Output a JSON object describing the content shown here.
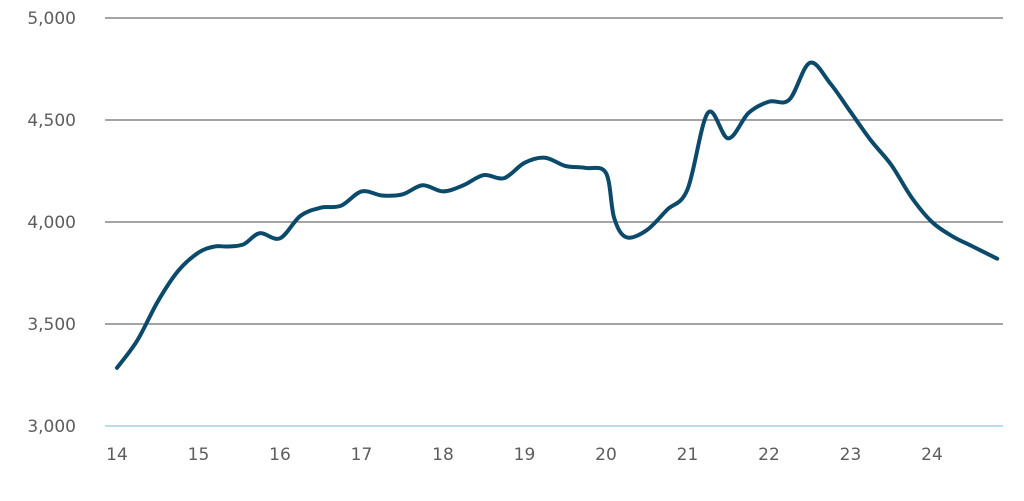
{
  "chart_data": {
    "type": "line",
    "title": "",
    "xlabel": "",
    "ylabel": "",
    "x_ticks": [
      "14",
      "15",
      "16",
      "17",
      "18",
      "19",
      "20",
      "21",
      "22",
      "23",
      "24"
    ],
    "y_ticks": [
      "3,000",
      "3,500",
      "4,000",
      "4,500",
      "5,000"
    ],
    "xlim": [
      14,
      24.8
    ],
    "ylim": [
      3000,
      5000
    ],
    "grid": true,
    "colors": {
      "line": "#0c4a6b",
      "grid": "#6e6e6e",
      "baseline": "#a9cfe0",
      "tick_text": "#5d5d5d"
    },
    "series": [
      {
        "x": [
          14.0,
          14.25,
          14.5,
          14.75,
          15.0,
          15.2,
          15.35,
          15.55,
          15.75,
          16.0,
          16.25,
          16.5,
          16.75,
          17.0,
          17.25,
          17.5,
          17.75,
          18.0,
          18.25,
          18.5,
          18.75,
          19.0,
          19.25,
          19.5,
          19.75,
          20.0,
          20.1,
          20.25,
          20.5,
          20.75,
          21.0,
          21.25,
          21.5,
          21.75,
          22.0,
          22.25,
          22.5,
          22.75,
          23.0,
          23.25,
          23.5,
          23.75,
          24.0,
          24.25,
          24.5,
          24.8
        ],
        "y": [
          3285,
          3420,
          3610,
          3760,
          3850,
          3880,
          3880,
          3890,
          3945,
          3920,
          4030,
          4070,
          4080,
          4150,
          4130,
          4135,
          4180,
          4150,
          4180,
          4230,
          4215,
          4290,
          4315,
          4275,
          4265,
          4240,
          4020,
          3925,
          3960,
          4060,
          4160,
          4535,
          4410,
          4535,
          4590,
          4600,
          4780,
          4680,
          4540,
          4400,
          4280,
          4120,
          4000,
          3930,
          3880,
          3820
        ]
      }
    ]
  }
}
